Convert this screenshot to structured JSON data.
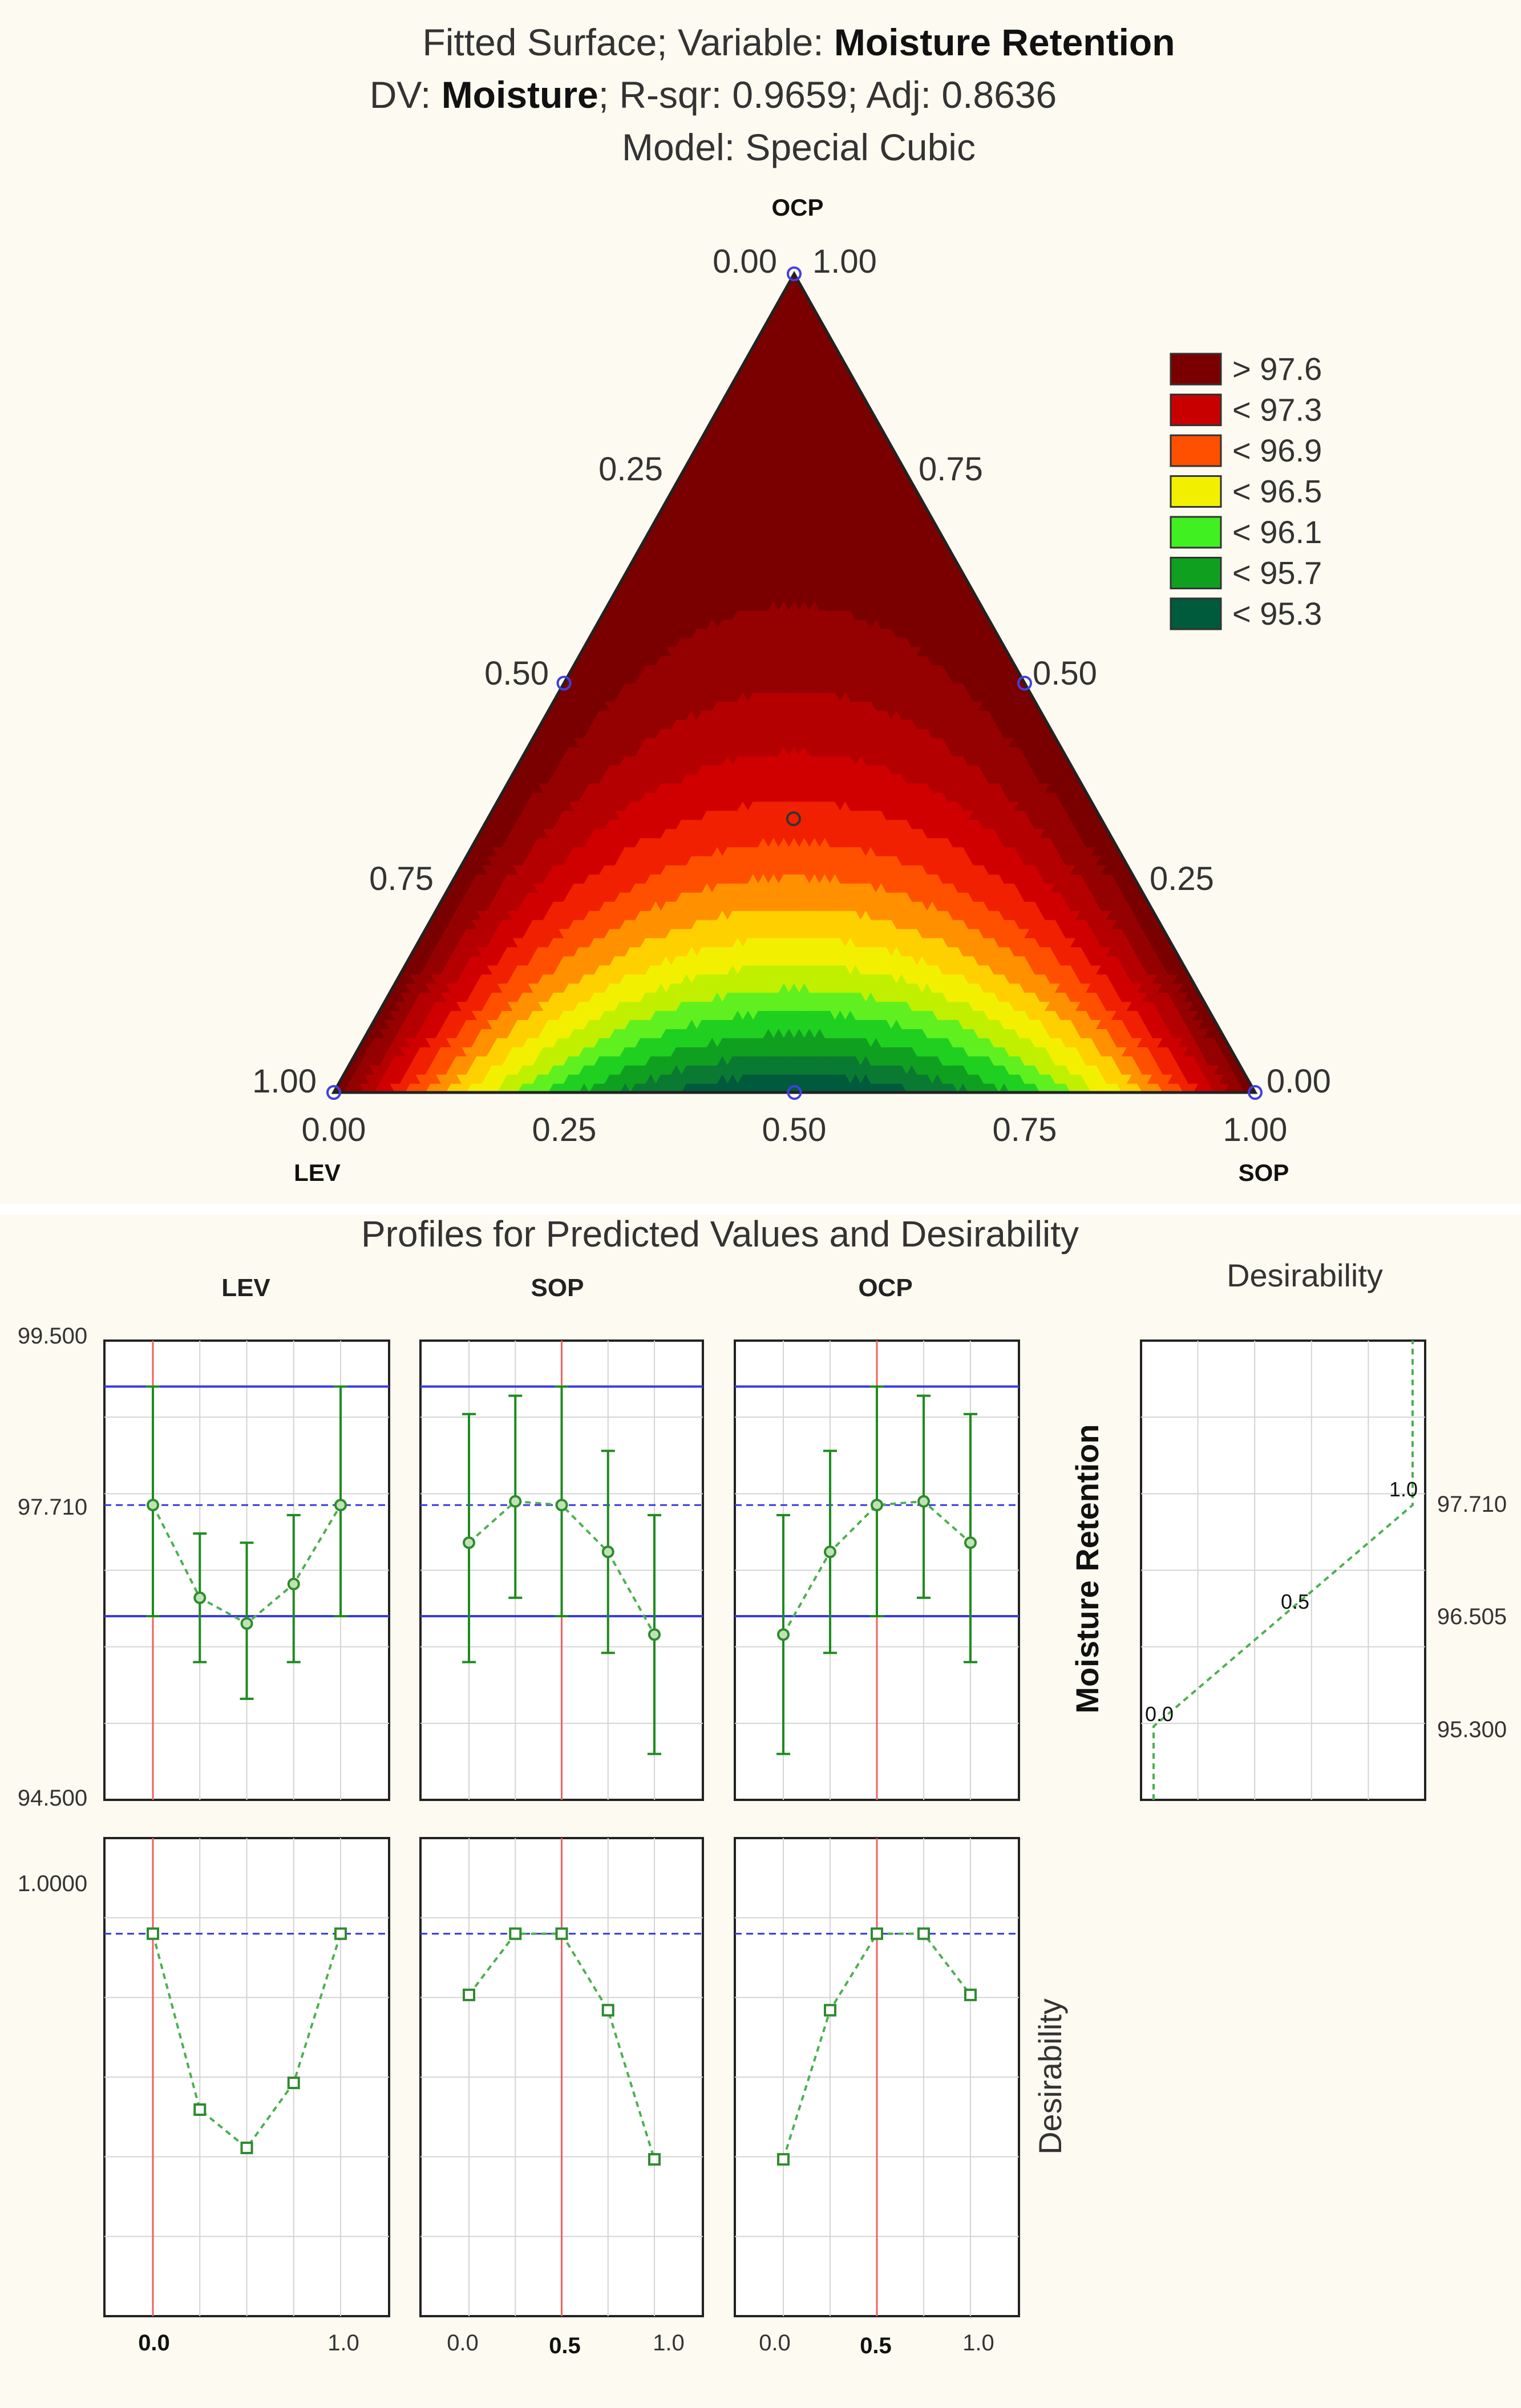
{
  "ternary": {
    "title": {
      "line1_prefix": "Fitted Surface; Variable: ",
      "line1_bold": "Moisture Retention",
      "line2_prefix": "DV: ",
      "line2_bold": "Moisture",
      "line2_suffix": "; R-sqr: 0.9659; Adj: 0.8636",
      "line3": "Model: Special Cubic"
    },
    "vertices": {
      "top": "OCP",
      "left": "LEV",
      "right": "SOP"
    },
    "top_tick_left": "0.00",
    "top_tick_right": "1.00",
    "left_edge_ticks": [
      "0.25",
      "0.50",
      "0.75",
      "1.00"
    ],
    "right_edge_ticks": [
      "0.75",
      "0.50",
      "0.25",
      "0.00"
    ],
    "bottom_ticks": [
      "0.00",
      "0.25",
      "0.50",
      "0.75",
      "1.00"
    ],
    "legend": [
      {
        "label": "> 97.6",
        "color": "#7a0000"
      },
      {
        "label": "< 97.3",
        "color": "#c80000"
      },
      {
        "label": "< 96.9",
        "color": "#ff5000"
      },
      {
        "label": "< 96.5",
        "color": "#f2f000"
      },
      {
        "label": "< 96.1",
        "color": "#40f020"
      },
      {
        "label": "< 95.7",
        "color": "#10a020"
      },
      {
        "label": "< 95.3",
        "color": "#005a3c"
      }
    ],
    "palette": [
      "#005a3c",
      "#0a7a32",
      "#10a020",
      "#20d020",
      "#60f020",
      "#c0f000",
      "#f2f000",
      "#ffd000",
      "#ff9000",
      "#ff5000",
      "#f02000",
      "#d00000",
      "#b40000",
      "#950000",
      "#7a0000"
    ],
    "design_points": [
      {
        "lev": 1,
        "sop": 0,
        "ocp": 0
      },
      {
        "lev": 0,
        "sop": 1,
        "ocp": 0
      },
      {
        "lev": 0,
        "sop": 0,
        "ocp": 1
      },
      {
        "lev": 0.5,
        "sop": 0.5,
        "ocp": 0
      },
      {
        "lev": 0.5,
        "sop": 0,
        "ocp": 0.5
      },
      {
        "lev": 0,
        "sop": 0.5,
        "ocp": 0.5
      },
      {
        "lev": 0.333,
        "sop": 0.333,
        "ocp": 0.333
      }
    ]
  },
  "profiles": {
    "title": "Profiles for Predicted Values and Desirability",
    "columns": [
      "LEV",
      "SOP",
      "OCP"
    ],
    "desirability_title": "Desirability",
    "response_label": "Moisture Retention",
    "desirability_label": "Desirability",
    "y_ticks_pred": [
      "99.500",
      "97.710",
      "94.500"
    ],
    "y_tick_desir": "1.0000",
    "x_tick_lo": "0.0",
    "x_tick_hi": "1.0",
    "current_values": [
      "0.0",
      "0.5",
      "0.5"
    ],
    "right_axis_ticks": [
      "97.710",
      "96.505",
      "95.300"
    ],
    "desir_curve_labels": [
      "0.0",
      "0.5",
      "1.0"
    ]
  },
  "chart_data": [
    {
      "type": "heatmap",
      "title": "Fitted Surface; Variable: Moisture Retention",
      "subtitle": "DV: Moisture; R-sqr: 0.9659; Adj: 0.8636 — Model: Special Cubic",
      "components": [
        "LEV",
        "SOP",
        "OCP"
      ],
      "contour_levels": [
        95.3,
        95.7,
        96.1,
        96.5,
        96.9,
        97.3,
        97.6
      ],
      "predicted_min": 95.4,
      "predicted_max": 97.75
    },
    {
      "type": "line",
      "title": "Profiles for Predicted Values",
      "ylim": [
        94.5,
        99.5
      ],
      "ref_lines": {
        "upper": 99.0,
        "target": 97.71,
        "lower": 96.5
      },
      "panels": [
        {
          "name": "LEV",
          "current": 0.0,
          "x": [
            0,
            0.25,
            0.5,
            0.75,
            1.0
          ],
          "pred": [
            97.71,
            96.7,
            96.42,
            96.85,
            97.71
          ],
          "lower": [
            96.5,
            96.0,
            95.6,
            96.0,
            96.5
          ],
          "upper": [
            99.0,
            97.4,
            97.3,
            97.6,
            99.0
          ]
        },
        {
          "name": "SOP",
          "current": 0.5,
          "x": [
            0,
            0.25,
            0.5,
            0.75,
            1.0
          ],
          "pred": [
            97.3,
            97.75,
            97.71,
            97.2,
            96.3
          ],
          "lower": [
            96.0,
            96.7,
            96.5,
            96.1,
            95.0
          ],
          "upper": [
            98.7,
            98.9,
            99.0,
            98.3,
            97.6
          ]
        },
        {
          "name": "OCP",
          "current": 0.5,
          "x": [
            0,
            0.25,
            0.5,
            0.75,
            1.0
          ],
          "pred": [
            96.3,
            97.2,
            97.71,
            97.75,
            97.3
          ],
          "lower": [
            95.0,
            96.1,
            96.5,
            96.7,
            96.0
          ],
          "upper": [
            97.6,
            98.3,
            99.0,
            98.9,
            98.7
          ]
        }
      ]
    },
    {
      "type": "line",
      "title": "Desirability profiles",
      "ylim": [
        0,
        1.25
      ],
      "target": 1.0,
      "panels": [
        {
          "name": "LEV",
          "x": [
            0,
            0.25,
            0.5,
            0.75,
            1.0
          ],
          "values": [
            1.0,
            0.54,
            0.44,
            0.61,
            1.0
          ]
        },
        {
          "name": "SOP",
          "x": [
            0,
            0.25,
            0.5,
            0.75,
            1.0
          ],
          "values": [
            0.84,
            1.0,
            1.0,
            0.8,
            0.41
          ]
        },
        {
          "name": "OCP",
          "x": [
            0,
            0.25,
            0.5,
            0.75,
            1.0
          ],
          "values": [
            0.41,
            0.8,
            1.0,
            1.0,
            0.84
          ]
        }
      ]
    },
    {
      "type": "line",
      "title": "Desirability function: Moisture Retention",
      "x_range": [
        0,
        1
      ],
      "ylim": [
        94.5,
        99.5
      ],
      "points": [
        {
          "desirability": 0.0,
          "response": 95.3
        },
        {
          "desirability": 0.5,
          "response": 96.505
        },
        {
          "desirability": 1.0,
          "response": 97.71
        }
      ]
    }
  ]
}
